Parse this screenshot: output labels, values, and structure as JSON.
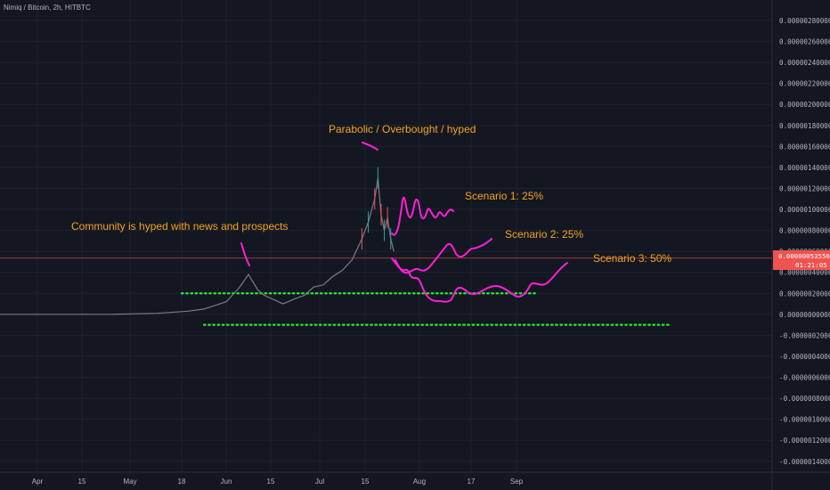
{
  "symbol_title": "Nimiq / Bitcoin, 2h, HITBTC",
  "last_price_tag": {
    "value_label": "0.00000053550",
    "countdown_label": "01:21:05",
    "color": "#ef5350"
  },
  "colors": {
    "background": "#131722",
    "grid": "#1e2230",
    "price_line": "#787b86",
    "annotation_text": "#f7a21b",
    "scenario_lines": "#ff1ed6",
    "support_lines": "#2ee82e"
  },
  "chart_data": {
    "type": "line",
    "title": "Nimiq / Bitcoin, 2h, HITBTC",
    "xlabel": "",
    "ylabel": "",
    "grid": true,
    "y_axis_position": "right",
    "x_tick_labels": [
      "Apr",
      "15",
      "May",
      "18",
      "Jun",
      "15",
      "Jul",
      "15",
      "Aug",
      "17",
      "Sep"
    ],
    "y_tick_labels": [
      "0.00000280000",
      "0.00000260000",
      "0.00000240000",
      "0.00000220000",
      "0.00000200000",
      "0.00000180000",
      "0.00000160000",
      "0.00000140000",
      "0.00000120000",
      "0.00000100000",
      "0.00000080000",
      "0.00000060000",
      "0.00000040000",
      "0.00000020000",
      "0.00000000000",
      "-0.00000020000",
      "-0.00000040000",
      "-0.00000060000",
      "-0.00000080000",
      "-0.00000100000",
      "-0.00000120000",
      "-0.00000140000"
    ],
    "ylim": [
      -1.4e-06,
      2.8e-06
    ],
    "last_price": 5.355e-07,
    "series": [
      {
        "x": [
          "Mar 25",
          "Apr 10",
          "Apr 25",
          "May 10",
          "May 20",
          "May 25",
          "May 28",
          "Jun 1",
          "Jun 5",
          "Jun 8",
          "Jun 11",
          "Jun 13",
          "Jun 16",
          "Jun 19",
          "Jun 23",
          "Jun 26",
          "Jun 29",
          "Jul 2",
          "Jul 5",
          "Jul 8",
          "Jul 11",
          "Jul 14",
          "Jul 16",
          "Jul 18",
          "Jul 19",
          "Jul 20",
          "Jul 21",
          "Jul 22",
          "Jul 23",
          "Jul 24"
        ],
        "values": [
          0.0,
          0.0,
          0.0,
          1e-08,
          3e-08,
          5e-08,
          8e-08,
          1.2e-07,
          2.5e-07,
          3.8e-07,
          2.3e-07,
          1.8e-07,
          1.4e-07,
          1e-07,
          1.5e-07,
          1.8e-07,
          2.6e-07,
          2.8e-07,
          3.6e-07,
          4.2e-07,
          5.2e-07,
          7.2e-07,
          8.8e-07,
          1.1e-06,
          1.3e-06,
          9.5e-07,
          8e-07,
          9.2e-07,
          7.2e-07,
          6e-07
        ]
      }
    ],
    "horizontal_levels": [
      2e-07,
      -1e-07
    ],
    "annotations": [
      "Community is hyped with news and prospects",
      "Parabolic / Overbought / hyped",
      "Scenario 1: 25%",
      "Scenario 2: 25%",
      "Scenario 3: 50%"
    ]
  }
}
